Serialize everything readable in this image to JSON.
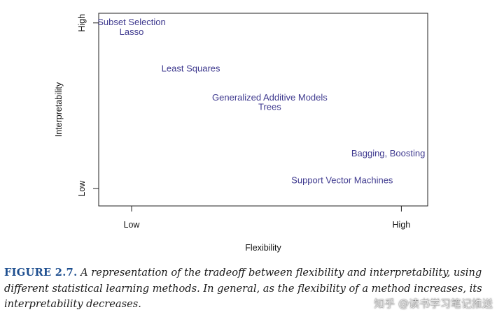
{
  "chart_data": {
    "type": "scatter",
    "xlabel": "Flexibility",
    "ylabel": "Interpretability",
    "xticks": [
      {
        "label": "Low",
        "value": 0.1
      },
      {
        "label": "High",
        "value": 0.92
      }
    ],
    "yticks": [
      {
        "label": "High",
        "value": 0.95
      },
      {
        "label": "Low",
        "value": 0.09
      }
    ],
    "xlim": [
      0,
      1
    ],
    "ylim": [
      0,
      1
    ],
    "points": [
      {
        "label": "Subset Selection",
        "x": 0.1,
        "y": 0.95
      },
      {
        "label": "Lasso",
        "x": 0.1,
        "y": 0.9
      },
      {
        "label": "Least Squares",
        "x": 0.28,
        "y": 0.71
      },
      {
        "label": "Generalized Additive Models",
        "x": 0.52,
        "y": 0.56
      },
      {
        "label": "Trees",
        "x": 0.52,
        "y": 0.51
      },
      {
        "label": "Bagging, Boosting",
        "x": 0.88,
        "y": 0.27
      },
      {
        "label": "Support Vector Machines",
        "x": 0.74,
        "y": 0.13
      }
    ],
    "label_color": "#3f3a8f"
  },
  "caption": {
    "figure_label": "FIGURE 2.7.",
    "text": "A representation of the tradeoff between flexibility and interpretability, using different statistical learning methods. In general, as the flexibility of a method increases, its interpretability decreases."
  },
  "watermark": "知乎 @读书学习笔记推送"
}
